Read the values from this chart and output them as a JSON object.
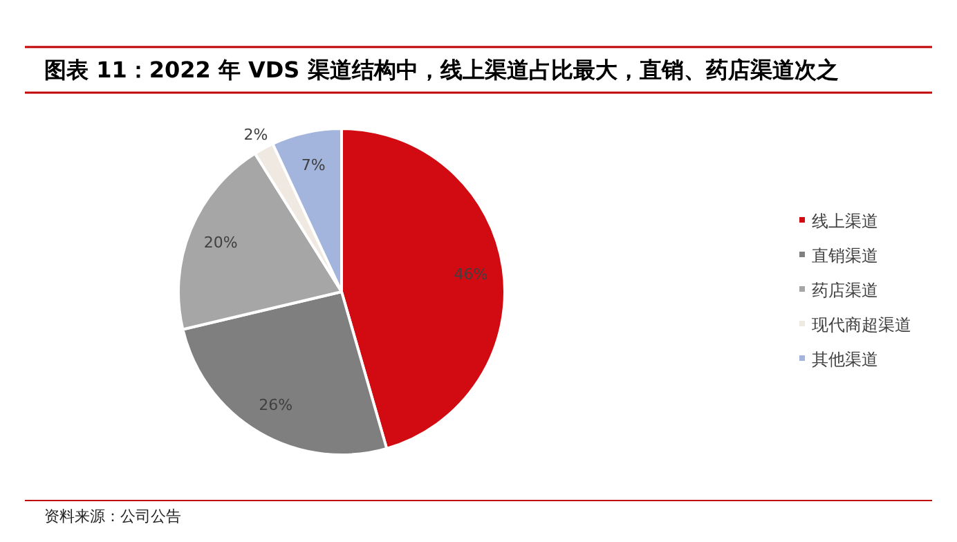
{
  "chart_data": {
    "type": "pie",
    "title": "图表 11：2022 年 VDS 渠道结构中，线上渠道占比最大，直销、药店渠道次之",
    "categories": [
      "线上渠道",
      "直销渠道",
      "药店渠道",
      "现代商超渠道",
      "其他渠道"
    ],
    "values": [
      46,
      26,
      20,
      2,
      7
    ],
    "colors": [
      "#d20a11",
      "#7f7f7f",
      "#a6a6a6",
      "#efe9e1",
      "#a3b5dd"
    ],
    "value_labels": [
      "46%",
      "26%",
      "20%",
      "2%",
      "7%"
    ],
    "legend": "right",
    "annotations": [
      "资料来源：公司公告"
    ]
  }
}
